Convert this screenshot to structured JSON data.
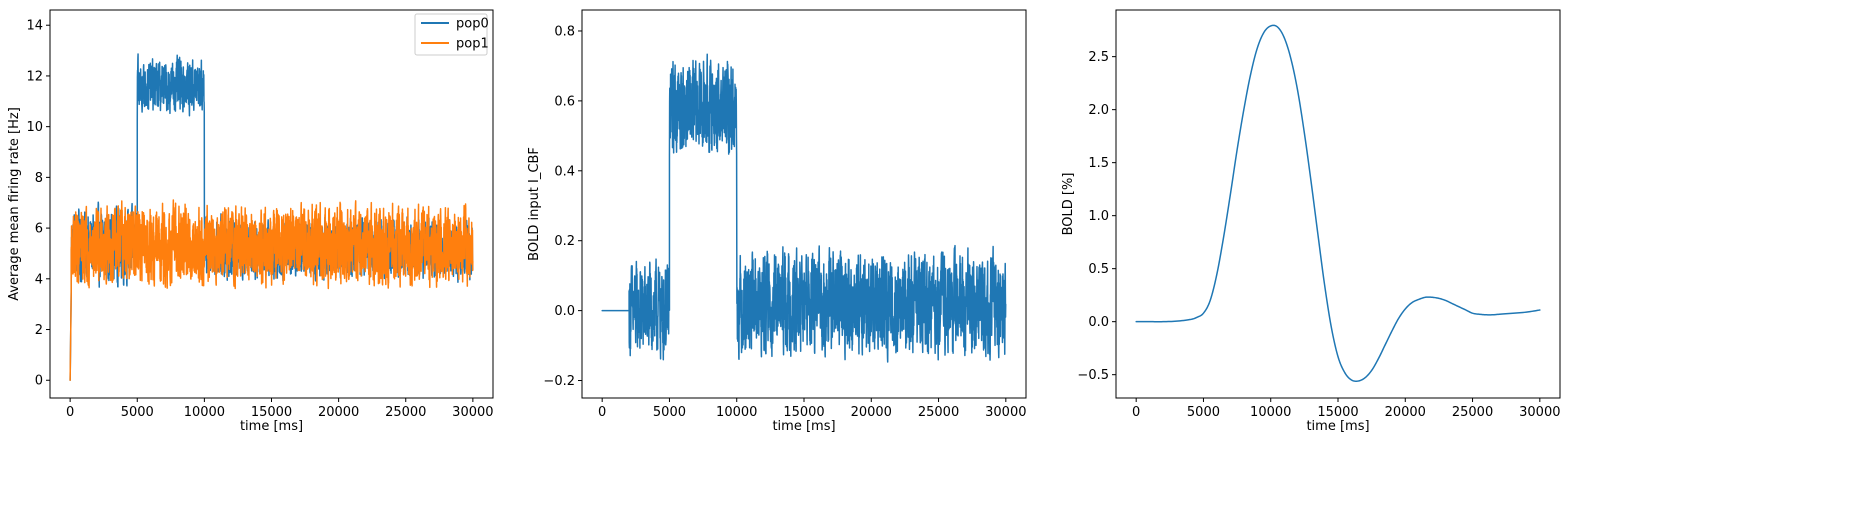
{
  "chart_data": [
    {
      "type": "line",
      "title": "",
      "xlabel": "time [ms]",
      "ylabel": "Average mean firing rate [Hz]",
      "xlim": [
        -1500,
        31500
      ],
      "ylim": [
        -0.7,
        14.6
      ],
      "xticks": [
        0,
        5000,
        10000,
        15000,
        20000,
        25000,
        30000
      ],
      "yticks": [
        0,
        2,
        4,
        6,
        8,
        10,
        12,
        14
      ],
      "grid": false,
      "legend": "top-right",
      "series": [
        {
          "name": "pop0",
          "color": "#1f77b4",
          "segments": [
            {
              "x0": 0,
              "x1": 80,
              "mean": 3.5,
              "noise": 0,
              "start": 0.0
            },
            {
              "x0": 80,
              "x1": 5000,
              "mean": 5.3,
              "noise": 0.75,
              "min": 3.6,
              "max": 7.2
            },
            {
              "x0": 5000,
              "x1": 10000,
              "mean": 11.6,
              "noise": 0.55,
              "min": 10.1,
              "max": 13.9
            },
            {
              "x0": 10000,
              "x1": 30000,
              "mean": 5.2,
              "noise": 0.6,
              "min": 3.6,
              "max": 6.9
            }
          ]
        },
        {
          "name": "pop1",
          "color": "#ff7f0e",
          "segments": [
            {
              "x0": 0,
              "x1": 80,
              "mean": 3.5,
              "noise": 0,
              "start": 0.0
            },
            {
              "x0": 80,
              "x1": 30000,
              "mean": 5.3,
              "noise": 0.8,
              "min": 3.6,
              "max": 7.3
            }
          ]
        }
      ]
    },
    {
      "type": "line",
      "title": "",
      "xlabel": "time [ms]",
      "ylabel": "BOLD input I_CBF",
      "xlim": [
        -1500,
        31500
      ],
      "ylim": [
        -0.25,
        0.86
      ],
      "xticks": [
        0,
        5000,
        10000,
        15000,
        20000,
        25000,
        30000
      ],
      "yticks": [
        -0.2,
        0.0,
        0.2,
        0.4,
        0.6,
        0.8
      ],
      "grid": false,
      "series": [
        {
          "color": "#1f77b4",
          "segments": [
            {
              "x0": 0,
              "x1": 2000,
              "mean": 0.0,
              "noise": 0
            },
            {
              "x0": 2000,
              "x1": 5000,
              "mean": 0.0,
              "noise": 0.07,
              "min": -0.18,
              "max": 0.26
            },
            {
              "x0": 5000,
              "x1": 10000,
              "mean": 0.58,
              "noise": 0.07,
              "min": 0.38,
              "max": 0.81
            },
            {
              "x0": 10000,
              "x1": 30000,
              "mean": 0.02,
              "noise": 0.075,
              "min": -0.22,
              "max": 0.27
            }
          ]
        }
      ]
    },
    {
      "type": "line",
      "title": "",
      "xlabel": "time [ms]",
      "ylabel": "BOLD [%]",
      "xlim": [
        -1500,
        31500
      ],
      "ylim": [
        -0.72,
        2.94
      ],
      "xticks": [
        0,
        5000,
        10000,
        15000,
        20000,
        25000,
        30000
      ],
      "yticks": [
        -0.5,
        0.0,
        0.5,
        1.0,
        1.5,
        2.0,
        2.5
      ],
      "grid": false,
      "series": [
        {
          "color": "#1f77b4",
          "x": [
            0,
            1000,
            2000,
            3000,
            4000,
            4500,
            5000,
            5500,
            6000,
            6500,
            7000,
            7500,
            8000,
            8500,
            9000,
            9500,
            10000,
            10500,
            11000,
            11500,
            12000,
            12500,
            13000,
            13500,
            14000,
            14500,
            15000,
            15500,
            16000,
            16500,
            17000,
            17500,
            18000,
            18500,
            19000,
            19500,
            20000,
            20500,
            21000,
            21500,
            22000,
            22500,
            23000,
            23500,
            24000,
            24500,
            25000,
            25500,
            26000,
            26500,
            27000,
            28000,
            29000,
            30000
          ],
          "y": [
            0.0,
            0.0,
            0.0,
            0.005,
            0.02,
            0.04,
            0.08,
            0.2,
            0.45,
            0.8,
            1.2,
            1.62,
            2.0,
            2.33,
            2.58,
            2.73,
            2.79,
            2.78,
            2.68,
            2.48,
            2.18,
            1.78,
            1.32,
            0.83,
            0.35,
            -0.05,
            -0.33,
            -0.48,
            -0.55,
            -0.56,
            -0.53,
            -0.46,
            -0.35,
            -0.22,
            -0.09,
            0.03,
            0.12,
            0.18,
            0.21,
            0.23,
            0.23,
            0.22,
            0.2,
            0.17,
            0.14,
            0.11,
            0.08,
            0.07,
            0.065,
            0.065,
            0.07,
            0.08,
            0.09,
            0.11
          ]
        }
      ]
    }
  ]
}
